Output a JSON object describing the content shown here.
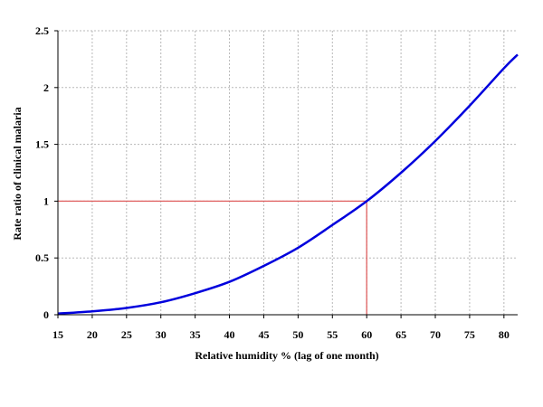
{
  "chart_data": {
    "type": "line",
    "title": "",
    "xlabel": "Relative humidity % (lag of one month)",
    "ylabel": "Rate ratio of clinical malaria",
    "xlim": [
      15,
      82
    ],
    "ylim": [
      0,
      2.5
    ],
    "x_ticks": [
      "15",
      "20",
      "25",
      "30",
      "35",
      "40",
      "45",
      "50",
      "55",
      "60",
      "65",
      "70",
      "75",
      "80"
    ],
    "y_ticks": [
      "0",
      "0.5",
      "1",
      "1.5",
      "2",
      "2.5"
    ],
    "grid": true,
    "series": [
      {
        "color": "#0000dd",
        "x": [
          15,
          20,
          25,
          30,
          35,
          40,
          45,
          50,
          55,
          60,
          65,
          70,
          75,
          80,
          82
        ],
        "y": [
          0.01,
          0.03,
          0.06,
          0.11,
          0.19,
          0.29,
          0.43,
          0.59,
          0.79,
          1.0,
          1.25,
          1.53,
          1.84,
          2.17,
          2.29
        ]
      }
    ],
    "reference_lines": {
      "color": "#e06060",
      "horizontal": {
        "y": 1,
        "x_from": 15,
        "x_to": 60
      },
      "vertical": {
        "x": 60,
        "y_from": 0,
        "y_to": 1
      }
    }
  }
}
